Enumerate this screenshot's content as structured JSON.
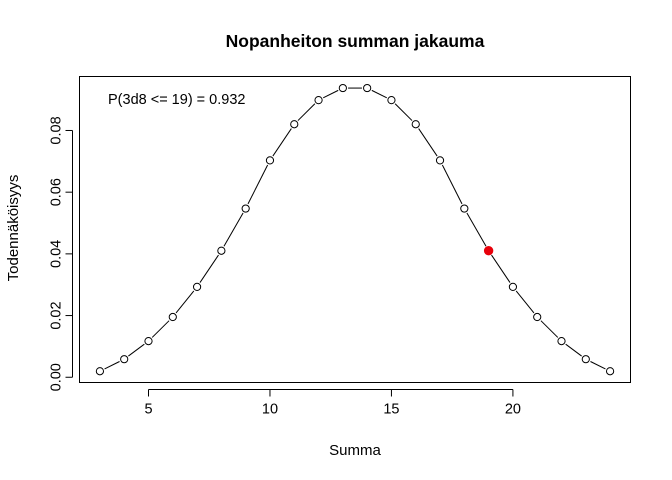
{
  "chart_data": {
    "type": "line",
    "title": "Nopanheiton summan jakauma",
    "xlabel": "Summa",
    "ylabel": "Todennäköisyys",
    "xlim": [
      2.16,
      24.84
    ],
    "ylim": [
      -0.0017,
      0.0975
    ],
    "x_ticks": [
      5,
      10,
      15,
      20
    ],
    "y_ticks": [
      0.0,
      0.02,
      0.04,
      0.06,
      0.08
    ],
    "y_tick_labels": [
      "0.00",
      "0.02",
      "0.04",
      "0.06",
      "0.08"
    ],
    "grid": false,
    "annotation": "P(3d8 <= 19) = 0.932",
    "series": [
      {
        "x": [
          3,
          4,
          5,
          6,
          7,
          8,
          9,
          10,
          11,
          12,
          13,
          14,
          15,
          16,
          17,
          18,
          19,
          20,
          21,
          22,
          23,
          24
        ],
        "values": [
          0.00195,
          0.00586,
          0.01172,
          0.01953,
          0.0293,
          0.04102,
          0.05469,
          0.07031,
          0.08203,
          0.08984,
          0.09375,
          0.09375,
          0.08984,
          0.08203,
          0.07031,
          0.05469,
          0.04102,
          0.0293,
          0.01953,
          0.01172,
          0.00586,
          0.00195
        ],
        "marker": "open-circle",
        "line_color": "#000000"
      }
    ],
    "highlight": {
      "x": 19,
      "value": 0.04102,
      "color": "#e8000b"
    }
  }
}
